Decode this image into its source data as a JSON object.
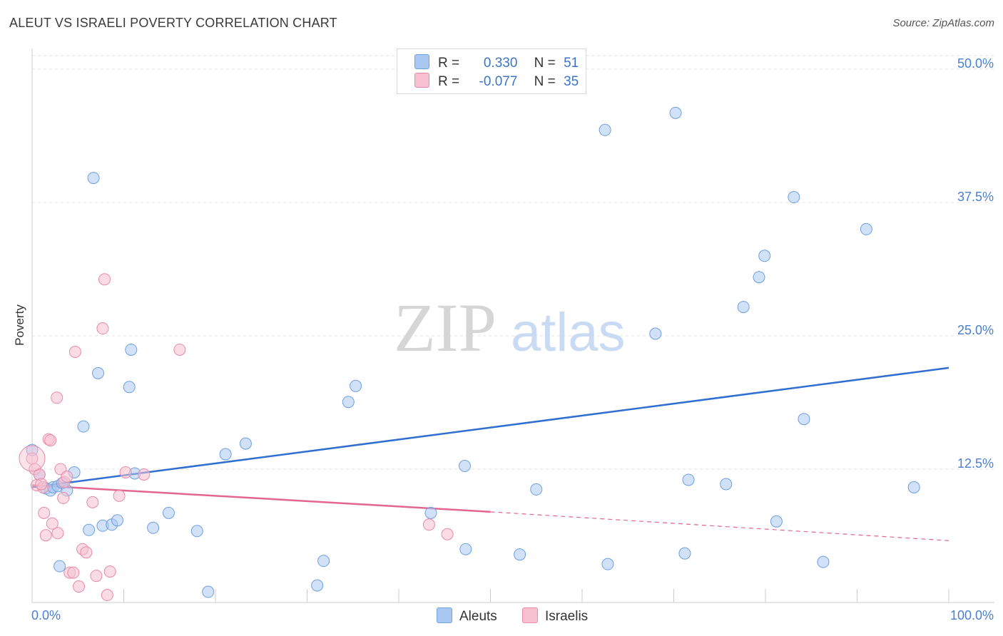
{
  "header": {
    "title": "ALEUT VS ISRAELI POVERTY CORRELATION CHART",
    "source": "Source: ZipAtlas.com"
  },
  "legend": {
    "rows": [
      {
        "r_label": "R =",
        "r_value": "0.330",
        "n_label": "N =",
        "n_value": "51",
        "color": "#a9c8f2",
        "border": "#6f9fe0"
      },
      {
        "r_label": "R =",
        "r_value": "-0.077",
        "n_label": "N =",
        "n_value": "35",
        "color": "#f7c0d0",
        "border": "#e88aa8"
      }
    ]
  },
  "bottom_legend": [
    {
      "label": "Aleuts",
      "color": "#a9c8f2",
      "border": "#6f9fe0"
    },
    {
      "label": "Israelis",
      "color": "#f7c0d0",
      "border": "#e88aa8"
    }
  ],
  "watermark": {
    "part1": "ZIP",
    "part2": "atlas"
  },
  "chart_data": {
    "type": "scatter",
    "title": "ALEUT VS ISRAELI POVERTY CORRELATION CHART",
    "ylabel": "Poverty",
    "xlabel": "",
    "xlim": [
      0,
      100
    ],
    "ylim": [
      0,
      50
    ],
    "x_tick_labels": [
      "0.0%",
      "100.0%"
    ],
    "y_ticks": [
      12.5,
      25.0,
      37.5,
      50.0
    ],
    "y_tick_labels": [
      "12.5%",
      "25.0%",
      "37.5%",
      "50.0%"
    ],
    "grid": true,
    "series": [
      {
        "name": "Aleuts",
        "color": "#6f9fe0",
        "fill": "#a9c8f2",
        "trend": {
          "x0": 0,
          "y0": 10.8,
          "x1": 100,
          "y1": 22.0
        },
        "points": [
          [
            0.0,
            14.3
          ],
          [
            0.8,
            12.0
          ],
          [
            1.5,
            10.7
          ],
          [
            2.0,
            10.5
          ],
          [
            2.3,
            10.8
          ],
          [
            2.8,
            10.9
          ],
          [
            3.3,
            11.2
          ],
          [
            3.8,
            10.5
          ],
          [
            4.6,
            12.2
          ],
          [
            5.6,
            16.5
          ],
          [
            6.2,
            6.8
          ],
          [
            6.7,
            39.8
          ],
          [
            7.2,
            21.5
          ],
          [
            7.7,
            7.2
          ],
          [
            8.7,
            7.3
          ],
          [
            9.3,
            7.7
          ],
          [
            10.6,
            20.2
          ],
          [
            10.8,
            23.7
          ],
          [
            11.2,
            12.1
          ],
          [
            13.2,
            7.0
          ],
          [
            14.9,
            8.4
          ],
          [
            18.0,
            6.7
          ],
          [
            19.2,
            1.0
          ],
          [
            21.1,
            13.9
          ],
          [
            23.3,
            14.9
          ],
          [
            31.1,
            1.6
          ],
          [
            31.8,
            3.9
          ],
          [
            34.5,
            18.8
          ],
          [
            35.3,
            20.3
          ],
          [
            43.5,
            8.4
          ],
          [
            47.2,
            12.8
          ],
          [
            47.3,
            5.0
          ],
          [
            53.2,
            4.5
          ],
          [
            55.0,
            10.6
          ],
          [
            62.5,
            44.3
          ],
          [
            62.8,
            3.6
          ],
          [
            68.0,
            25.2
          ],
          [
            70.2,
            45.9
          ],
          [
            71.2,
            4.6
          ],
          [
            71.6,
            11.5
          ],
          [
            75.7,
            11.1
          ],
          [
            77.6,
            27.7
          ],
          [
            79.3,
            30.5
          ],
          [
            79.9,
            32.5
          ],
          [
            81.2,
            7.6
          ],
          [
            83.1,
            38.0
          ],
          [
            84.2,
            17.2
          ],
          [
            86.3,
            3.8
          ],
          [
            91.0,
            35.0
          ],
          [
            96.2,
            10.8
          ],
          [
            3.0,
            3.4
          ]
        ]
      },
      {
        "name": "Israelis",
        "color": "#e88aa8",
        "fill": "#f7c0d0",
        "trend": {
          "x0": 0,
          "y0": 11.0,
          "x1": 50,
          "y1": 8.5,
          "dash_x1": 100,
          "dash_y1": 5.8
        },
        "points": [
          [
            0.0,
            13.5
          ],
          [
            0.3,
            12.5
          ],
          [
            0.5,
            11.0
          ],
          [
            0.8,
            12.0
          ],
          [
            1.2,
            10.8
          ],
          [
            1.3,
            8.4
          ],
          [
            1.5,
            6.3
          ],
          [
            1.8,
            15.3
          ],
          [
            2.0,
            15.2
          ],
          [
            2.2,
            7.4
          ],
          [
            2.7,
            19.2
          ],
          [
            2.8,
            6.5
          ],
          [
            3.1,
            12.5
          ],
          [
            3.4,
            9.8
          ],
          [
            3.5,
            11.3
          ],
          [
            3.8,
            11.8
          ],
          [
            4.1,
            2.8
          ],
          [
            4.5,
            2.8
          ],
          [
            4.7,
            23.5
          ],
          [
            5.1,
            1.5
          ],
          [
            5.5,
            5.0
          ],
          [
            5.9,
            4.7
          ],
          [
            6.6,
            9.4
          ],
          [
            7.0,
            2.5
          ],
          [
            7.7,
            25.7
          ],
          [
            7.9,
            30.3
          ],
          [
            8.2,
            0.7
          ],
          [
            8.5,
            2.9
          ],
          [
            9.5,
            10.0
          ],
          [
            10.2,
            12.2
          ],
          [
            12.2,
            12.0
          ],
          [
            16.1,
            23.7
          ],
          [
            43.3,
            7.3
          ],
          [
            45.3,
            6.4
          ],
          [
            1.0,
            11.1
          ]
        ]
      }
    ]
  }
}
